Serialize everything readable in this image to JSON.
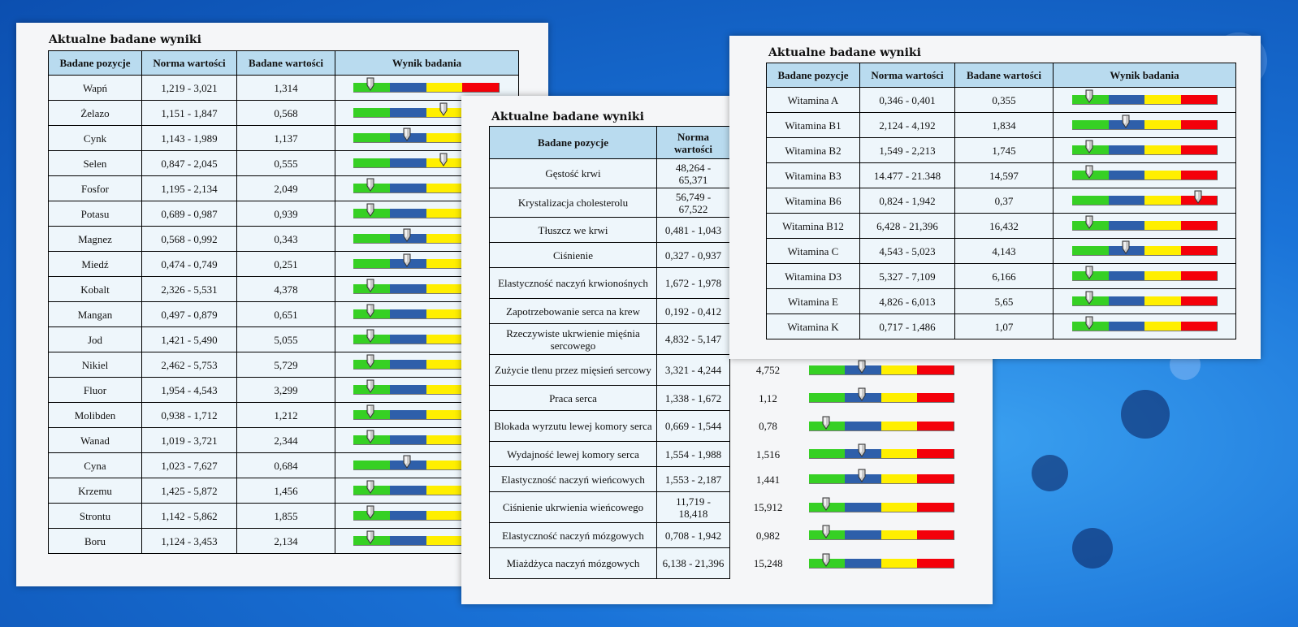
{
  "colors": {
    "green": "#36d024",
    "blue": "#2e5faa",
    "yellow": "#ffef00",
    "red": "#f4000a",
    "header": "#b9dbef"
  },
  "panel_a": {
    "title": "Aktualne badane wyniki",
    "headers": [
      "Badane pozycje",
      "Norma wartości",
      "Badane wartości",
      "Wynik badania"
    ],
    "rows": [
      {
        "name": "Wapń",
        "norm": "1,219 - 3,021",
        "value": "1,314",
        "marker": 0.12
      },
      {
        "name": "Żelazo",
        "norm": "1,151 - 1,847",
        "value": "0,568",
        "marker": 0.62
      },
      {
        "name": "Cynk",
        "norm": "1,143 - 1,989",
        "value": "1,137",
        "marker": 0.37
      },
      {
        "name": "Selen",
        "norm": "0,847 - 2,045",
        "value": "0,555",
        "marker": 0.62
      },
      {
        "name": "Fosfor",
        "norm": "1,195 - 2,134",
        "value": "2,049",
        "marker": 0.12
      },
      {
        "name": "Potasu",
        "norm": "0,689 - 0,987",
        "value": "0,939",
        "marker": 0.12
      },
      {
        "name": "Magnez",
        "norm": "0,568 - 0,992",
        "value": "0,343",
        "marker": 0.37
      },
      {
        "name": "Miedź",
        "norm": "0,474 - 0,749",
        "value": "0,251",
        "marker": 0.37
      },
      {
        "name": "Kobalt",
        "norm": "2,326 - 5,531",
        "value": "4,378",
        "marker": 0.12
      },
      {
        "name": "Mangan",
        "norm": "0,497 - 0,879",
        "value": "0,651",
        "marker": 0.12
      },
      {
        "name": "Jod",
        "norm": "1,421 - 5,490",
        "value": "5,055",
        "marker": 0.12
      },
      {
        "name": "Nikiel",
        "norm": "2,462 - 5,753",
        "value": "5,729",
        "marker": 0.12
      },
      {
        "name": "Fluor",
        "norm": "1,954 - 4,543",
        "value": "3,299",
        "marker": 0.12
      },
      {
        "name": "Molibden",
        "norm": "0,938 - 1,712",
        "value": "1,212",
        "marker": 0.12
      },
      {
        "name": "Wanad",
        "norm": "1,019 - 3,721",
        "value": "2,344",
        "marker": 0.12
      },
      {
        "name": "Cyna",
        "norm": "1,023 - 7,627",
        "value": "0,684",
        "marker": 0.37
      },
      {
        "name": "Krzemu",
        "norm": "1,425 - 5,872",
        "value": "1,456",
        "marker": 0.12
      },
      {
        "name": "Strontu",
        "norm": "1,142 - 5,862",
        "value": "1,855",
        "marker": 0.12
      },
      {
        "name": "Boru",
        "norm": "1,124 - 3,453",
        "value": "2,134",
        "marker": 0.12
      }
    ]
  },
  "panel_b": {
    "title": "Aktualne badane wyniki",
    "headers": [
      "Badane pozycje",
      "Norma wartości"
    ],
    "rows": [
      {
        "name": "Gęstość krwi",
        "norm": "48,264 - 65,371",
        "value": "",
        "marker": null
      },
      {
        "name": "Krystalizacja cholesterolu",
        "norm": "56,749 - 67,522",
        "value": "",
        "marker": null
      },
      {
        "name": "Tłuszcz we krwi",
        "norm": "0,481 - 1,043",
        "value": "",
        "marker": null
      },
      {
        "name": "Ciśnienie",
        "norm": "0,327 - 0,937",
        "value": "",
        "marker": null
      },
      {
        "name": "Elastyczność naczyń krwionośnych",
        "norm": "1,672 - 1,978",
        "value": "",
        "marker": null
      },
      {
        "name": "Zapotrzebowanie serca na krew",
        "norm": "0,192 - 0,412",
        "value": "",
        "marker": null
      },
      {
        "name": "Rzeczywiste ukrwienie mięśnia sercowego",
        "norm": "4,832 - 5,147",
        "value": "",
        "marker": null
      },
      {
        "name": "Zużycie tlenu przez mięsień sercowy",
        "norm": "3,321 - 4,244",
        "value": "4,752",
        "marker": 0.37
      },
      {
        "name": "Praca serca",
        "norm": "1,338 - 1,672",
        "value": "1,12",
        "marker": 0.37
      },
      {
        "name": "Blokada wyrzutu lewej komory serca",
        "norm": "0,669 - 1,544",
        "value": "0,78",
        "marker": 0.12
      },
      {
        "name": "Wydajność lewej komory serca",
        "norm": "1,554 - 1,988",
        "value": "1,516",
        "marker": 0.37
      },
      {
        "name": "Elastyczność naczyń wieńcowych",
        "norm": "1,553 - 2,187",
        "value": "1,441",
        "marker": 0.37
      },
      {
        "name": "Ciśnienie ukrwienia wieńcowego",
        "norm": "11,719 - 18,418",
        "value": "15,912",
        "marker": 0.12
      },
      {
        "name": "Elastyczność naczyń mózgowych",
        "norm": "0,708 - 1,942",
        "value": "0,982",
        "marker": 0.12
      },
      {
        "name": "Miażdżyca naczyń mózgowych",
        "norm": "6,138 - 21,396",
        "value": "15,248",
        "marker": 0.12
      }
    ]
  },
  "panel_c": {
    "title": "Aktualne badane wyniki",
    "headers": [
      "Badane pozycje",
      "Norma wartości",
      "Badane wartości",
      "Wynik badania"
    ],
    "rows": [
      {
        "name": "Witamina A",
        "norm": "0,346 - 0,401",
        "value": "0,355",
        "marker": 0.12
      },
      {
        "name": "Witamina B1",
        "norm": "2,124 - 4,192",
        "value": "1,834",
        "marker": 0.37
      },
      {
        "name": "Witamina B2",
        "norm": "1,549 - 2,213",
        "value": "1,745",
        "marker": 0.12
      },
      {
        "name": "Witamina B3",
        "norm": "14.477 - 21.348",
        "value": "14,597",
        "marker": 0.12
      },
      {
        "name": "Witamina B6",
        "norm": "0,824 - 1,942",
        "value": "0,37",
        "marker": 0.87
      },
      {
        "name": "Witamina B12",
        "norm": "6,428 - 21,396",
        "value": "16,432",
        "marker": 0.12
      },
      {
        "name": "Witamina C",
        "norm": "4,543 - 5,023",
        "value": "4,143",
        "marker": 0.37
      },
      {
        "name": "Witamina D3",
        "norm": "5,327 - 7,109",
        "value": "6,166",
        "marker": 0.12
      },
      {
        "name": "Witamina E",
        "norm": "4,826 - 6,013",
        "value": "5,65",
        "marker": 0.12
      },
      {
        "name": "Witamina K",
        "norm": "0,717 - 1,486",
        "value": "1,07",
        "marker": 0.12
      }
    ]
  }
}
